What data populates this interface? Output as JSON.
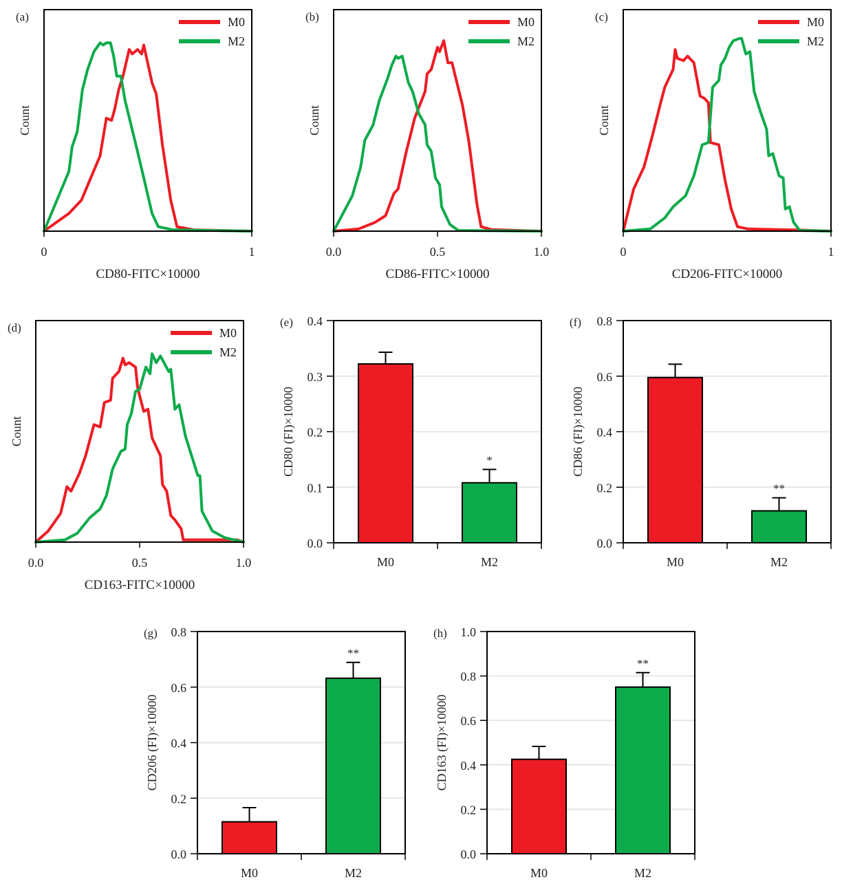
{
  "colors": {
    "M0": "#ed1c24",
    "M2": "#0dab4b",
    "axis": "#000000",
    "grid": "#e6e6e6"
  },
  "chart_data": [
    {
      "panel": "(a)",
      "type": "line",
      "xlabel": "CD80-FITC×10000",
      "ylabel": "Count",
      "xlim": [
        0,
        1
      ],
      "xticks": [
        "0",
        "1"
      ],
      "xtick_values": [
        0,
        1
      ],
      "legend": "top-right",
      "grid": false,
      "series": [
        {
          "name": "M0",
          "points": [
            [
              0,
              0
            ],
            [
              0.12,
              0.08
            ],
            [
              0.18,
              0.14
            ],
            [
              0.27,
              0.34
            ],
            [
              0.3,
              0.51
            ],
            [
              0.325,
              0.5
            ],
            [
              0.34,
              0.55
            ],
            [
              0.36,
              0.64
            ],
            [
              0.38,
              0.7
            ],
            [
              0.41,
              0.82
            ],
            [
              0.425,
              0.8
            ],
            [
              0.45,
              0.82
            ],
            [
              0.47,
              0.8
            ],
            [
              0.48,
              0.84
            ],
            [
              0.52,
              0.67
            ],
            [
              0.54,
              0.62
            ],
            [
              0.57,
              0.39
            ],
            [
              0.61,
              0.14
            ],
            [
              0.64,
              0.02
            ],
            [
              0.72,
              0.006
            ],
            [
              1,
              0
            ]
          ]
        },
        {
          "name": "M2",
          "points": [
            [
              0,
              0
            ],
            [
              0.12,
              0.27
            ],
            [
              0.135,
              0.38
            ],
            [
              0.16,
              0.45
            ],
            [
              0.185,
              0.64
            ],
            [
              0.21,
              0.73
            ],
            [
              0.24,
              0.81
            ],
            [
              0.27,
              0.85
            ],
            [
              0.285,
              0.84
            ],
            [
              0.3,
              0.85
            ],
            [
              0.32,
              0.85
            ],
            [
              0.335,
              0.79
            ],
            [
              0.35,
              0.7
            ],
            [
              0.37,
              0.7
            ],
            [
              0.39,
              0.59
            ],
            [
              0.45,
              0.36
            ],
            [
              0.48,
              0.24
            ],
            [
              0.52,
              0.08
            ],
            [
              0.55,
              0.02
            ],
            [
              0.62,
              0.006
            ],
            [
              1,
              0
            ]
          ]
        }
      ]
    },
    {
      "panel": "(b)",
      "type": "line",
      "xlabel": "CD86-FITC×10000",
      "ylabel": "Count",
      "xlim": [
        0,
        1
      ],
      "xticks": [
        "0.0",
        "0.5",
        "1.0"
      ],
      "xtick_values": [
        0,
        0.5,
        1
      ],
      "legend": "top-right",
      "grid": false,
      "series": [
        {
          "name": "M0",
          "points": [
            [
              0,
              0
            ],
            [
              0.12,
              0.01
            ],
            [
              0.2,
              0.04
            ],
            [
              0.25,
              0.07
            ],
            [
              0.29,
              0.17
            ],
            [
              0.31,
              0.19
            ],
            [
              0.35,
              0.36
            ],
            [
              0.39,
              0.51
            ],
            [
              0.44,
              0.63
            ],
            [
              0.45,
              0.71
            ],
            [
              0.47,
              0.73
            ],
            [
              0.5,
              0.83
            ],
            [
              0.51,
              0.81
            ],
            [
              0.53,
              0.86
            ],
            [
              0.55,
              0.76
            ],
            [
              0.57,
              0.76
            ],
            [
              0.62,
              0.57
            ],
            [
              0.65,
              0.41
            ],
            [
              0.66,
              0.34
            ],
            [
              0.69,
              0.12
            ],
            [
              0.71,
              0.02
            ],
            [
              0.76,
              0.007
            ],
            [
              1,
              0
            ]
          ]
        },
        {
          "name": "M2",
          "points": [
            [
              0,
              0
            ],
            [
              0.09,
              0.16
            ],
            [
              0.13,
              0.29
            ],
            [
              0.15,
              0.41
            ],
            [
              0.19,
              0.48
            ],
            [
              0.22,
              0.59
            ],
            [
              0.26,
              0.69
            ],
            [
              0.28,
              0.75
            ],
            [
              0.3,
              0.79
            ],
            [
              0.31,
              0.78
            ],
            [
              0.33,
              0.79
            ],
            [
              0.36,
              0.67
            ],
            [
              0.38,
              0.63
            ],
            [
              0.41,
              0.53
            ],
            [
              0.44,
              0.48
            ],
            [
              0.45,
              0.39
            ],
            [
              0.47,
              0.36
            ],
            [
              0.49,
              0.24
            ],
            [
              0.51,
              0.21
            ],
            [
              0.52,
              0.11
            ],
            [
              0.56,
              0.03
            ],
            [
              0.6,
              0.003
            ],
            [
              1,
              0
            ]
          ]
        }
      ]
    },
    {
      "panel": "(c)",
      "type": "line",
      "xlabel": "CD206-FITC×10000",
      "ylabel": "Count",
      "xlim": [
        0,
        1
      ],
      "xticks": [
        "0",
        "1"
      ],
      "xtick_values": [
        0,
        1
      ],
      "legend": "top-right",
      "grid": false,
      "series": [
        {
          "name": "M0",
          "points": [
            [
              0,
              0
            ],
            [
              0.05,
              0.19
            ],
            [
              0.1,
              0.29
            ],
            [
              0.14,
              0.43
            ],
            [
              0.18,
              0.58
            ],
            [
              0.2,
              0.65
            ],
            [
              0.24,
              0.73
            ],
            [
              0.25,
              0.82
            ],
            [
              0.26,
              0.78
            ],
            [
              0.29,
              0.77
            ],
            [
              0.31,
              0.79
            ],
            [
              0.34,
              0.76
            ],
            [
              0.37,
              0.61
            ],
            [
              0.39,
              0.6
            ],
            [
              0.41,
              0.58
            ],
            [
              0.42,
              0.4
            ],
            [
              0.46,
              0.39
            ],
            [
              0.49,
              0.23
            ],
            [
              0.52,
              0.1
            ],
            [
              0.55,
              0.02
            ],
            [
              0.6,
              0.01
            ],
            [
              0.85,
              0.005
            ],
            [
              1,
              0
            ]
          ]
        },
        {
          "name": "M2",
          "points": [
            [
              0,
              0
            ],
            [
              0.13,
              0.01
            ],
            [
              0.2,
              0.06
            ],
            [
              0.24,
              0.11
            ],
            [
              0.3,
              0.16
            ],
            [
              0.34,
              0.25
            ],
            [
              0.38,
              0.39
            ],
            [
              0.41,
              0.4
            ],
            [
              0.42,
              0.52
            ],
            [
              0.43,
              0.65
            ],
            [
              0.46,
              0.68
            ],
            [
              0.47,
              0.75
            ],
            [
              0.49,
              0.78
            ],
            [
              0.51,
              0.83
            ],
            [
              0.53,
              0.86
            ],
            [
              0.56,
              0.87
            ],
            [
              0.57,
              0.87
            ],
            [
              0.59,
              0.8
            ],
            [
              0.61,
              0.81
            ],
            [
              0.63,
              0.63
            ],
            [
              0.66,
              0.54
            ],
            [
              0.69,
              0.46
            ],
            [
              0.7,
              0.34
            ],
            [
              0.72,
              0.35
            ],
            [
              0.75,
              0.25
            ],
            [
              0.77,
              0.24
            ],
            [
              0.78,
              0.1
            ],
            [
              0.8,
              0.11
            ],
            [
              0.82,
              0.04
            ],
            [
              0.85,
              0.003
            ],
            [
              1,
              0
            ]
          ]
        }
      ]
    },
    {
      "panel": "(d)",
      "type": "line",
      "xlabel": "CD163-FITC×10000",
      "ylabel": "Count",
      "xlim": [
        0,
        1
      ],
      "xticks": [
        "0.0",
        "0.5",
        "1.0"
      ],
      "xtick_values": [
        0,
        0.5,
        1
      ],
      "legend": "top-right",
      "grid": false,
      "series": [
        {
          "name": "M0",
          "points": [
            [
              0,
              0
            ],
            [
              0.06,
              0.05
            ],
            [
              0.12,
              0.13
            ],
            [
              0.15,
              0.25
            ],
            [
              0.17,
              0.23
            ],
            [
              0.21,
              0.31
            ],
            [
              0.24,
              0.39
            ],
            [
              0.28,
              0.53
            ],
            [
              0.31,
              0.52
            ],
            [
              0.33,
              0.63
            ],
            [
              0.36,
              0.64
            ],
            [
              0.37,
              0.74
            ],
            [
              0.4,
              0.77
            ],
            [
              0.42,
              0.83
            ],
            [
              0.43,
              0.8
            ],
            [
              0.45,
              0.81
            ],
            [
              0.48,
              0.79
            ],
            [
              0.49,
              0.7
            ],
            [
              0.5,
              0.66
            ],
            [
              0.52,
              0.59
            ],
            [
              0.54,
              0.6
            ],
            [
              0.56,
              0.47
            ],
            [
              0.6,
              0.39
            ],
            [
              0.61,
              0.26
            ],
            [
              0.63,
              0.23
            ],
            [
              0.65,
              0.12
            ],
            [
              0.67,
              0.1
            ],
            [
              0.7,
              0.06
            ],
            [
              0.71,
              0.01
            ],
            [
              0.97,
              0.01
            ],
            [
              1,
              0
            ]
          ]
        },
        {
          "name": "M2",
          "points": [
            [
              0,
              0
            ],
            [
              0.14,
              0.01
            ],
            [
              0.2,
              0.04
            ],
            [
              0.26,
              0.11
            ],
            [
              0.31,
              0.15
            ],
            [
              0.34,
              0.21
            ],
            [
              0.37,
              0.33
            ],
            [
              0.41,
              0.41
            ],
            [
              0.43,
              0.42
            ],
            [
              0.44,
              0.53
            ],
            [
              0.46,
              0.58
            ],
            [
              0.48,
              0.68
            ],
            [
              0.5,
              0.69
            ],
            [
              0.53,
              0.79
            ],
            [
              0.55,
              0.76
            ],
            [
              0.56,
              0.85
            ],
            [
              0.58,
              0.81
            ],
            [
              0.6,
              0.84
            ],
            [
              0.64,
              0.77
            ],
            [
              0.65,
              0.78
            ],
            [
              0.67,
              0.6
            ],
            [
              0.69,
              0.62
            ],
            [
              0.72,
              0.48
            ],
            [
              0.75,
              0.39
            ],
            [
              0.78,
              0.3
            ],
            [
              0.79,
              0.3
            ],
            [
              0.8,
              0.14
            ],
            [
              0.85,
              0.05
            ],
            [
              0.91,
              0.02
            ],
            [
              1,
              0
            ]
          ]
        }
      ]
    },
    {
      "panel": "(e)",
      "type": "bar",
      "ylabel": "CD80 (FI)×10000",
      "xlabel": "",
      "categories": [
        "M0",
        "M2"
      ],
      "values": [
        0.322,
        0.108
      ],
      "errors": [
        0.021,
        0.024
      ],
      "significance": [
        "",
        "*"
      ],
      "ylim": [
        0,
        0.4
      ],
      "yticks": [
        "0.0",
        "0.1",
        "0.2",
        "0.3",
        "0.4"
      ],
      "grid": true
    },
    {
      "panel": "(f)",
      "type": "bar",
      "ylabel": "CD86 (FI)×10000",
      "xlabel": "",
      "categories": [
        "M0",
        "M2"
      ],
      "values": [
        0.595,
        0.115
      ],
      "errors": [
        0.048,
        0.047
      ],
      "significance": [
        "",
        "**"
      ],
      "ylim": [
        0,
        0.8
      ],
      "yticks": [
        "0.0",
        "0.2",
        "0.4",
        "0.6",
        "0.8"
      ],
      "grid": true
    },
    {
      "panel": "(g)",
      "type": "bar",
      "ylabel": "CD206 (FI)×10000",
      "xlabel": "",
      "categories": [
        "M0",
        "M2"
      ],
      "values": [
        0.115,
        0.632
      ],
      "errors": [
        0.051,
        0.057
      ],
      "significance": [
        "",
        "**"
      ],
      "ylim": [
        0,
        0.8
      ],
      "yticks": [
        "0.0",
        "0.2",
        "0.4",
        "0.6",
        "0.8"
      ],
      "grid": true
    },
    {
      "panel": "(h)",
      "type": "bar",
      "ylabel": "CD163 (FI)×10000",
      "xlabel": "",
      "categories": [
        "M0",
        "M2"
      ],
      "values": [
        0.425,
        0.75
      ],
      "errors": [
        0.058,
        0.065
      ],
      "significance": [
        "",
        "**"
      ],
      "ylim": [
        0,
        1.0
      ],
      "yticks": [
        "0.0",
        "0.2",
        "0.4",
        "0.6",
        "0.8",
        "1.0"
      ],
      "grid": true
    }
  ]
}
